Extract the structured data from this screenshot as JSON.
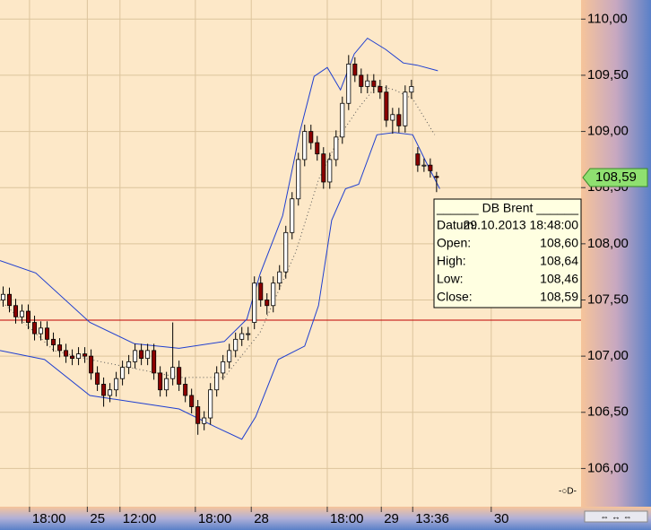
{
  "chart_data": {
    "type": "candlestick",
    "open": [
      107.5,
      107.55,
      107.45,
      107.35,
      107.4,
      107.3,
      107.2,
      107.25,
      107.15,
      107.1,
      107.05,
      107.0,
      106.98,
      107.02,
      107.0,
      106.85,
      106.75,
      106.65,
      106.7,
      106.8,
      106.9,
      106.95,
      107.05,
      106.98,
      107.05,
      106.85,
      106.7,
      106.8,
      106.9,
      106.75,
      106.65,
      106.55,
      106.4,
      106.45,
      106.7,
      106.85,
      106.95,
      107.05,
      107.15,
      107.2,
      107.3,
      107.65,
      107.5,
      107.45,
      107.65,
      107.75,
      108.1,
      108.4,
      108.75,
      109.0,
      108.9,
      108.8,
      108.55,
      108.75,
      108.95,
      109.25,
      109.6,
      109.5,
      109.4,
      109.45,
      109.4,
      109.35,
      109.1,
      109.15,
      109.05,
      109.35,
      108.8,
      108.7,
      108.7,
      108.6
    ],
    "high": [
      107.62,
      107.61,
      107.51,
      107.46,
      107.46,
      107.36,
      107.31,
      107.31,
      107.21,
      107.16,
      107.11,
      107.06,
      107.08,
      107.08,
      107.06,
      106.91,
      106.81,
      106.76,
      106.86,
      106.96,
      107.01,
      107.11,
      107.11,
      107.11,
      107.11,
      106.91,
      106.86,
      107.3,
      106.96,
      106.81,
      106.71,
      106.61,
      106.51,
      106.76,
      106.91,
      107.01,
      107.11,
      107.21,
      107.26,
      107.26,
      107.71,
      107.71,
      107.56,
      107.71,
      107.81,
      108.16,
      108.46,
      108.81,
      109.06,
      109.06,
      108.96,
      108.86,
      108.81,
      109.01,
      109.31,
      109.68,
      109.66,
      109.56,
      109.51,
      109.51,
      109.46,
      109.41,
      109.21,
      109.21,
      109.41,
      109.46,
      108.86,
      108.76,
      108.76,
      108.64
    ],
    "low": [
      107.44,
      107.39,
      107.29,
      107.29,
      107.24,
      107.14,
      107.14,
      107.09,
      107.04,
      106.99,
      106.94,
      106.92,
      106.92,
      106.94,
      106.79,
      106.69,
      106.55,
      106.59,
      106.64,
      106.74,
      106.84,
      106.89,
      106.92,
      106.92,
      106.79,
      106.64,
      106.64,
      106.74,
      106.69,
      106.59,
      106.49,
      106.3,
      106.34,
      106.39,
      106.64,
      106.79,
      106.89,
      106.99,
      107.09,
      107.14,
      107.24,
      107.44,
      107.37,
      107.39,
      107.59,
      107.69,
      108.04,
      108.34,
      108.69,
      108.84,
      108.74,
      108.49,
      108.49,
      108.69,
      108.89,
      109.19,
      109.44,
      109.34,
      109.34,
      109.34,
      109.29,
      109.04,
      108.98,
      108.99,
      108.99,
      109.29,
      108.64,
      108.64,
      108.59,
      108.46
    ],
    "close": [
      107.55,
      107.45,
      107.35,
      107.4,
      107.3,
      107.2,
      107.25,
      107.15,
      107.1,
      107.05,
      107.0,
      106.98,
      107.02,
      107.0,
      106.85,
      106.75,
      106.65,
      106.7,
      106.8,
      106.9,
      106.95,
      107.05,
      106.98,
      107.05,
      106.85,
      106.7,
      106.8,
      106.9,
      106.75,
      106.65,
      106.55,
      106.4,
      106.45,
      106.7,
      106.85,
      106.95,
      107.05,
      107.15,
      107.2,
      107.2,
      107.65,
      107.5,
      107.45,
      107.65,
      107.75,
      108.1,
      108.4,
      108.75,
      109.0,
      108.9,
      108.8,
      108.55,
      108.75,
      108.95,
      109.25,
      109.6,
      109.5,
      109.4,
      109.45,
      109.4,
      109.35,
      109.1,
      109.15,
      109.05,
      109.35,
      109.4,
      108.7,
      108.7,
      108.65,
      108.59
    ],
    "up_color": "#ffffff",
    "down_color": "#8b0000",
    "bands": [
      {
        "color": "#1f3fd0",
        "style": "solid",
        "x": [
          -0.5,
          5.2,
          13.8,
          20.9,
          28.0,
          35.2,
          38.8,
          40.9,
          44.5,
          47.3,
          49.5,
          51.6,
          53.7,
          55.9,
          58.0,
          60.9,
          63.7,
          65.9,
          69.2
        ],
        "values": [
          107.85,
          107.74,
          107.3,
          107.11,
          107.07,
          107.13,
          107.33,
          107.73,
          108.25,
          109.01,
          109.49,
          109.57,
          109.37,
          109.69,
          109.83,
          109.73,
          109.61,
          109.59,
          109.54
        ]
      },
      {
        "color": "#1f3fd0",
        "style": "solid",
        "x": [
          -0.5,
          6.6,
          13.8,
          20.9,
          28.0,
          33.8,
          38.0,
          40.2,
          43.8,
          48.0,
          50.2,
          52.3,
          54.5,
          56.6,
          59.5,
          62.3,
          65.2,
          67.3,
          69.5
        ],
        "values": [
          107.05,
          106.97,
          106.65,
          106.59,
          106.53,
          106.37,
          106.26,
          106.46,
          106.97,
          107.09,
          107.45,
          108.21,
          108.49,
          108.53,
          108.97,
          108.99,
          108.97,
          108.73,
          108.49
        ]
      },
      {
        "color": "#555555",
        "style": "dotted",
        "x": [
          -0.5,
          8.1,
          13.8,
          28.0,
          35.2,
          40.9,
          46.6,
          50.2,
          53.7,
          56.6,
          59.5,
          62.3,
          65.2,
          68.7
        ],
        "values": [
          107.5,
          107.05,
          106.97,
          106.81,
          106.81,
          107.21,
          107.93,
          108.57,
          108.97,
          109.21,
          109.41,
          109.37,
          109.29,
          108.97
        ]
      }
    ],
    "hline": {
      "value": 107.32,
      "color": "#c00000"
    },
    "last_price": {
      "value": 108.59,
      "label": "108,59"
    },
    "xlim": [
      -0.5,
      92
    ],
    "ylim": [
      105.66,
      110.17
    ],
    "xticks": [
      {
        "value": 4.2,
        "label": "18:00"
      },
      {
        "value": 13.4,
        "label": "25"
      },
      {
        "value": 18.6,
        "label": "12:00"
      },
      {
        "value": 30.6,
        "label": "18:00"
      },
      {
        "value": 39.5,
        "label": "28"
      },
      {
        "value": 51.6,
        "label": "18:00"
      },
      {
        "value": 60.2,
        "label": "29"
      },
      {
        "value": 65.2,
        "label": "13:36"
      },
      {
        "value": 77.7,
        "label": "30"
      }
    ],
    "yticks": [
      {
        "value": 106,
        "label": "106,00"
      },
      {
        "value": 106.5,
        "label": "106,50"
      },
      {
        "value": 107,
        "label": "107,00"
      },
      {
        "value": 107.5,
        "label": "107,50"
      },
      {
        "value": 108,
        "label": "108,00"
      },
      {
        "value": 108.5,
        "label": "108,50"
      },
      {
        "value": 109,
        "label": "109,00"
      },
      {
        "value": 109.5,
        "label": "109,50"
      },
      {
        "value": 110,
        "label": "110,00"
      }
    ],
    "grid": true,
    "tooltip": {
      "title": "______ DB Brent ______",
      "rows": [
        [
          "Datum:",
          "29.10.2013 18:48:00"
        ],
        [
          "Open:",
          "108,60"
        ],
        [
          "High:",
          "108,64"
        ],
        [
          "Low:",
          "108,46"
        ],
        [
          "Close:",
          "108,59"
        ]
      ]
    }
  }
}
